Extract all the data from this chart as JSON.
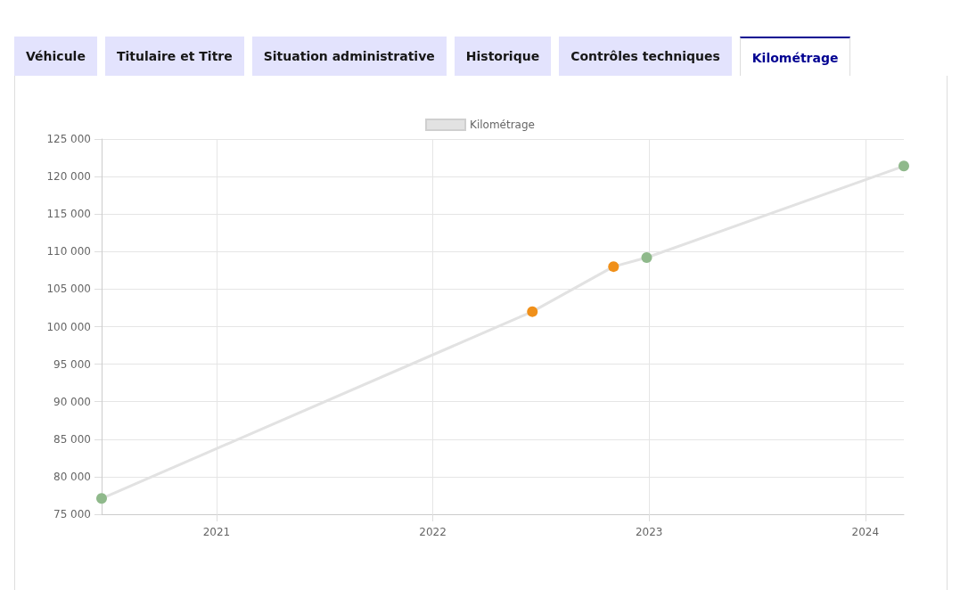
{
  "chart_data": {
    "type": "line",
    "annotations": [
      "Véhicule",
      "Titulaire et Titre",
      "Situation administrative",
      "Historique",
      "Contrôles techniques",
      "Kilométrage"
    ],
    "series": [
      {
        "name": "Kilométrage",
        "color": "#e2e2e2",
        "x": [
          "2020-06-21",
          "2022-06-18",
          "2022-11-02",
          "2022-12-28",
          "2024-03-06"
        ],
        "values": [
          77100,
          102000,
          108000,
          109200,
          121400
        ],
        "colors": [
          "#8fb98b",
          "#f0901a",
          "#f0901a",
          "#8fb98b",
          "#8fb98b"
        ]
      }
    ],
    "xlim": [
      "2020-06-21",
      "2024-03-06"
    ],
    "xticks": [
      "2021",
      "2022",
      "2023",
      "2024"
    ],
    "ylim": [
      75000,
      125000
    ],
    "yticks": [
      {
        "value": 75000,
        "label": "75 000"
      },
      {
        "value": 80000,
        "label": "80 000"
      },
      {
        "value": 85000,
        "label": "85 000"
      },
      {
        "value": 90000,
        "label": "90 000"
      },
      {
        "value": 95000,
        "label": "95 000"
      },
      {
        "value": 100000,
        "label": "100 000"
      },
      {
        "value": 105000,
        "label": "105 000"
      },
      {
        "value": 110000,
        "label": "110 000"
      },
      {
        "value": 115000,
        "label": "115 000"
      },
      {
        "value": 120000,
        "label": "120 000"
      },
      {
        "value": 125000,
        "label": "125 000"
      }
    ],
    "grid": true,
    "legend": "top",
    "marker": "circle",
    "line_style": "solid"
  }
}
